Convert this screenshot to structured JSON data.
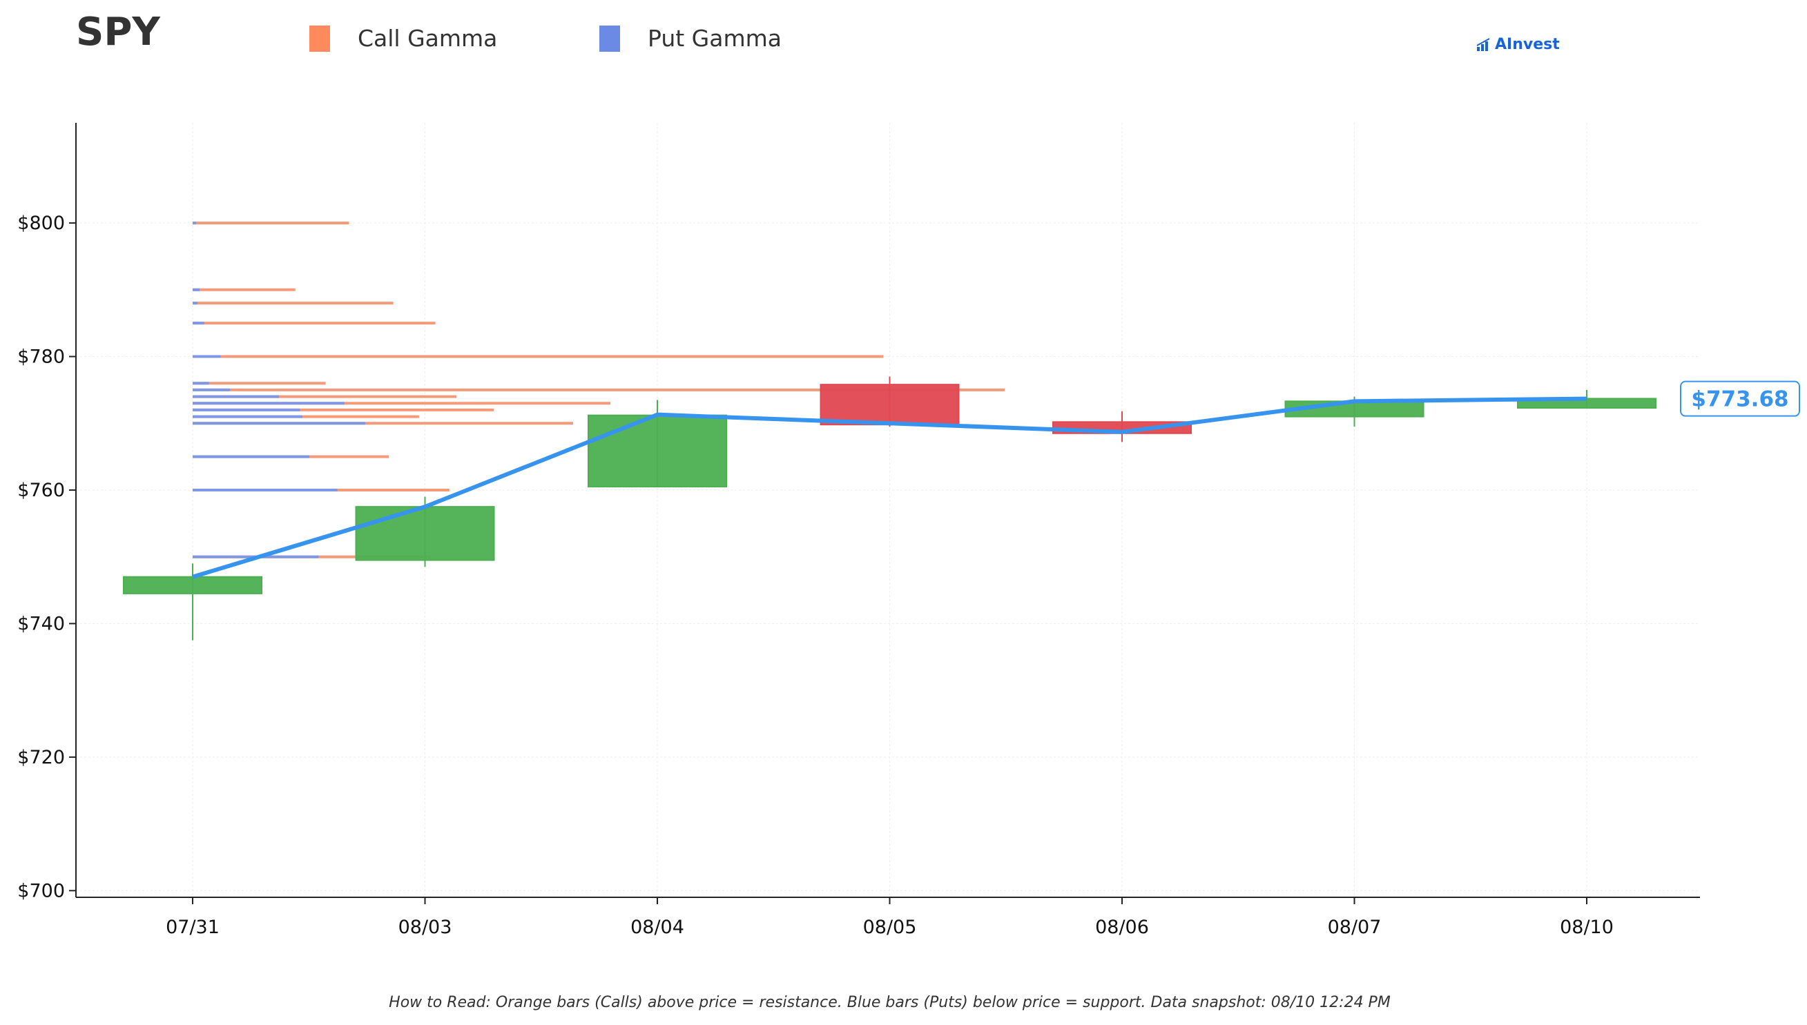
{
  "header": {
    "ticker": "SPY",
    "brand": "AInvest"
  },
  "legend": [
    {
      "label": "Call Gamma",
      "color": "#ff8a5c"
    },
    {
      "label": "Put Gamma",
      "color": "#6b8ae6"
    }
  ],
  "footnote": "How to Read: Orange bars (Calls) above price = resistance. Blue bars (Puts) below price = support. Data snapshot: 08/10 12:24 PM",
  "colors": {
    "up": "#4caf50",
    "down": "#e04850",
    "price_line": "#3794ee",
    "call": "#f59a78",
    "put": "#7f98e6",
    "axis": "#222222",
    "grid": "#eeeeee"
  },
  "chart_data": {
    "type": "candlestick",
    "categories": [
      "07/31",
      "08/03",
      "08/04",
      "08/05",
      "08/06",
      "08/07",
      "08/10"
    ],
    "ylim": [
      699,
      815
    ],
    "y_ticks": [
      700,
      720,
      740,
      760,
      780,
      800
    ],
    "y_tick_labels": [
      "$700",
      "$720",
      "$740",
      "$760",
      "$780",
      "$800"
    ],
    "candles": [
      {
        "date": "07/31",
        "open": 744.5,
        "close": 747.0,
        "high": 749.0,
        "low": 737.5
      },
      {
        "date": "08/03",
        "open": 749.5,
        "close": 757.5,
        "high": 759.0,
        "low": 748.5
      },
      {
        "date": "08/04",
        "open": 760.5,
        "close": 771.2,
        "high": 773.5,
        "low": 760.5
      },
      {
        "date": "08/05",
        "open": 775.8,
        "close": 769.8,
        "high": 777.0,
        "low": 769.5
      },
      {
        "date": "08/06",
        "open": 770.2,
        "close": 768.5,
        "high": 771.8,
        "low": 767.2
      },
      {
        "date": "08/07",
        "open": 771.0,
        "close": 773.3,
        "high": 774.0,
        "low": 769.5
      },
      {
        "date": "08/10",
        "open": 772.3,
        "close": 773.7,
        "high": 775.0,
        "low": 772.3
      }
    ],
    "price_line": [
      747.0,
      757.5,
      771.3,
      770.0,
      768.7,
      773.3,
      773.68
    ],
    "current_price_label": "$773.68",
    "gamma_levels": [
      {
        "strike": 800,
        "call": 6.7,
        "put": 0.15
      },
      {
        "strike": 790,
        "call": 4.4,
        "put": 0.3
      },
      {
        "strike": 788,
        "call": 8.6,
        "put": 0.2
      },
      {
        "strike": 785,
        "call": 10.4,
        "put": 0.5
      },
      {
        "strike": 780,
        "call": 29.6,
        "put": 1.2
      },
      {
        "strike": 776,
        "call": 5.7,
        "put": 0.7
      },
      {
        "strike": 775,
        "call": 34.8,
        "put": 1.6
      },
      {
        "strike": 774,
        "call": 11.3,
        "put": 3.7
      },
      {
        "strike": 773,
        "call": 17.9,
        "put": 6.5
      },
      {
        "strike": 772,
        "call": 12.9,
        "put": 4.6
      },
      {
        "strike": 771,
        "call": 9.7,
        "put": 4.7
      },
      {
        "strike": 770,
        "call": 16.3,
        "put": 7.4
      },
      {
        "strike": 765,
        "call": 8.4,
        "put": 5.0
      },
      {
        "strike": 760,
        "call": 11.0,
        "put": 6.2
      },
      {
        "strike": 750,
        "call": 10.2,
        "put": 5.4
      }
    ]
  }
}
